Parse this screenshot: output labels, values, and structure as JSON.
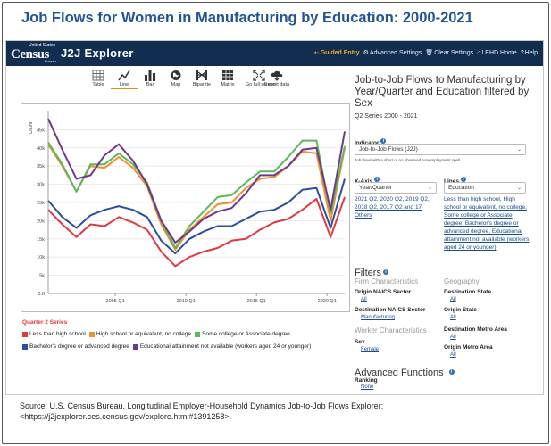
{
  "page": {
    "title": "Job Flows for Women in Manufacturing by Education: 2000-2021",
    "source_line1": "Source: U.S. Census Bureau, Longitudinal Employer-Household Dynamics Job-to-Job Flows Explorer:",
    "source_line2": "<https://j2jexplorer.ces.census.gov/explore.html#1391258>."
  },
  "topbar": {
    "logo_small": "United States",
    "logo_main": "Census",
    "logo_sub": "Bureau",
    "app_name": "J2J Explorer",
    "nav": [
      {
        "label": "Guided Entry",
        "icon": "arrow-left-icon"
      },
      {
        "label": "Advanced Settings",
        "icon": "gear-icon"
      },
      {
        "label": "Clear Settings",
        "icon": "trash-icon"
      },
      {
        "label": "LEHD Home",
        "icon": "home-icon"
      },
      {
        "label": "Help",
        "icon": "question-icon"
      }
    ]
  },
  "toolbar": {
    "tools": [
      {
        "label": "Table",
        "icon": "table-icon"
      },
      {
        "label": "Line",
        "icon": "line-chart-icon",
        "active": true
      },
      {
        "label": "Bar",
        "icon": "bar-chart-icon"
      },
      {
        "label": "Map",
        "icon": "globe-icon"
      },
      {
        "label": "Bipartite",
        "icon": "bipartite-icon"
      },
      {
        "label": "Matrix",
        "icon": "matrix-icon"
      },
      {
        "label": "Go full screen",
        "icon": "fullscreen-icon"
      },
      {
        "label": "Export data",
        "icon": "cloud-download-icon"
      }
    ]
  },
  "panel": {
    "title": "Job-to-Job Flows to Manufacturing by Year/Quarter and Education filtered by Sex",
    "series": "Q2 Series 2000 - 2021",
    "indicator_label": "Indicator",
    "indicator_value": "Job-to-Job Flows (J2J)",
    "indicator_note": "Job flows with a short or no observed nonemployment spell",
    "xaxis_label": "X-Axis",
    "xaxis_value": "Year/Quarter",
    "xaxis_links": "2021 Q2, 2020 Q2, 2019 Q2, 2018 Q2, 2017 Q2 and 17 Others",
    "lines_label": "Lines",
    "lines_value": "Education",
    "lines_links": "Less than high school, High school or equivalent, no college, Some college or Associate degree, Bachelor's degree or advanced degree, Educational attainment not available (workers aged 24 or younger)",
    "filters_head": "Filters",
    "firm_head": "Firm Characteristics",
    "geo_head": "Geography",
    "origin_naics_label": "Origin NAICS Sector",
    "origin_naics_value": "All",
    "dest_naics_label": "Destination NAICS Sector",
    "dest_naics_value": "Manufacturing",
    "dest_state_label": "Destination State",
    "dest_state_value": "All",
    "origin_state_label": "Origin State",
    "origin_state_value": "All",
    "worker_head": "Worker Characteristics",
    "sex_label": "Sex",
    "sex_value": "Female",
    "dest_metro_label": "Destination Metro Area",
    "dest_metro_value": "All",
    "origin_metro_label": "Origin Metro Area",
    "origin_metro_value": "All",
    "adv_head": "Advanced Functions",
    "ranking_label": "Ranking",
    "ranking_value": "None"
  },
  "legend": {
    "title": "Quarter 2 Series"
  },
  "chart_data": {
    "type": "line",
    "ylabel": "Count",
    "ylim": [
      0,
      50000
    ],
    "yticks": [
      0,
      5000,
      10000,
      15000,
      20000,
      25000,
      30000,
      35000,
      40000,
      45000
    ],
    "ytick_labels": [
      "0.0",
      "5k",
      "10k",
      "15k",
      "20k",
      "25k",
      "30k",
      "35k",
      "40k",
      "45k"
    ],
    "x": [
      "2000 Q2",
      "2001 Q2",
      "2002 Q2",
      "2003 Q2",
      "2004 Q2",
      "2005 Q2",
      "2006 Q2",
      "2007 Q2",
      "2008 Q2",
      "2009 Q2",
      "2010 Q2",
      "2011 Q2",
      "2012 Q2",
      "2013 Q2",
      "2014 Q2",
      "2015 Q2",
      "2016 Q2",
      "2017 Q2",
      "2018 Q2",
      "2019 Q2",
      "2020 Q2",
      "2021 Q2"
    ],
    "xticks": [
      {
        "label": "2005 Q1",
        "pos": 4.75
      },
      {
        "label": "2010 Q1",
        "pos": 9.75
      },
      {
        "label": "2015 Q1",
        "pos": 14.75
      },
      {
        "label": "2020 Q1",
        "pos": 19.75
      }
    ],
    "grid": true,
    "legend_placement": "bottom",
    "series": [
      {
        "name": "Less than high school",
        "color": "#e03a3e",
        "values": [
          23000,
          19000,
          15500,
          19000,
          18500,
          21000,
          19500,
          17500,
          11500,
          7500,
          10000,
          11500,
          12500,
          14500,
          15000,
          17500,
          19500,
          20500,
          23000,
          26000,
          15500,
          26500
        ]
      },
      {
        "name": "High school or equivalent, no college",
        "color": "#f0922b",
        "values": [
          41000,
          35000,
          28000,
          35000,
          34500,
          37500,
          34500,
          29500,
          19000,
          12000,
          17500,
          21000,
          24500,
          25000,
          29000,
          31500,
          32000,
          35000,
          39000,
          38500,
          20000,
          40000
        ]
      },
      {
        "name": "Some college or Associate degree",
        "color": "#5cb85c",
        "values": [
          41500,
          35500,
          28000,
          35500,
          35500,
          38500,
          35500,
          30500,
          20000,
          12500,
          18500,
          22500,
          26500,
          27000,
          30500,
          33500,
          33500,
          37500,
          42000,
          42000,
          22000,
          40500
        ]
      },
      {
        "name": "Bachelor's degree or advanced degree",
        "color": "#2e4da0",
        "values": [
          25500,
          21000,
          18000,
          21500,
          23000,
          24000,
          23000,
          21000,
          14500,
          11000,
          15000,
          17000,
          18500,
          18500,
          20500,
          22500,
          23000,
          25000,
          28500,
          29000,
          18000,
          31500
        ]
      },
      {
        "name": "Educational attainment not available (workers aged 24 or younger)",
        "color": "#6b3a8c",
        "values": [
          48000,
          39500,
          31500,
          32500,
          38000,
          41000,
          36500,
          30000,
          20000,
          14000,
          17000,
          20500,
          22500,
          23500,
          27500,
          32500,
          32500,
          35000,
          39500,
          40000,
          23000,
          44500
        ]
      }
    ]
  }
}
